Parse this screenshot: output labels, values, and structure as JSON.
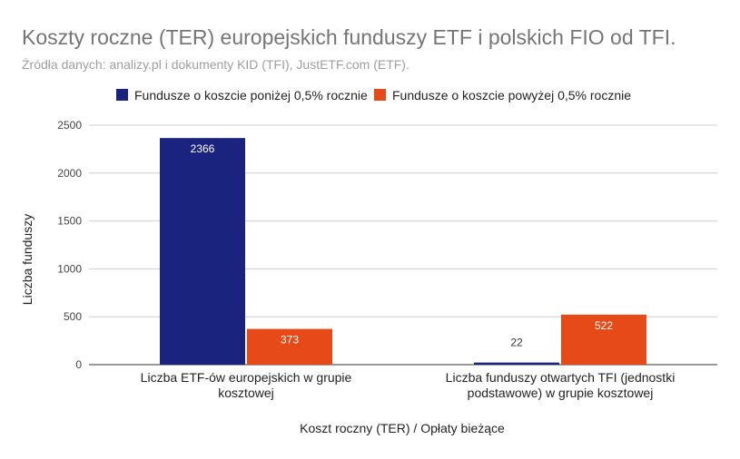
{
  "chart_data": {
    "type": "bar",
    "title": "Koszty roczne (TER) europejskich funduszy ETF i polskich FIO od TFI.",
    "subtitle": "Źródła danych: analizy.pl i dokumenty KID (TFI), JustETF.com (ETF).",
    "xlabel": "Koszt roczny (TER) / Opłaty bieżące",
    "ylabel": "Liczba funduszy",
    "categories": [
      [
        "Liczba ETF-ów europejskich w grupie",
        "kosztowej"
      ],
      [
        "Liczba funduszy otwartych TFI (jednostki",
        "podstawowe) w grupie kosztowej"
      ]
    ],
    "series": [
      {
        "name": "Fundusze o koszcie poniżej 0,5% rocznie",
        "color": "#1a237e",
        "values": [
          2366,
          22
        ]
      },
      {
        "name": "Fundusze o koszcie powyżej 0,5% rocznie",
        "color": "#e64a19",
        "values": [
          373,
          522
        ]
      }
    ],
    "ylim": [
      0,
      2500
    ],
    "yticks": [
      0,
      500,
      1000,
      1500,
      2000,
      2500
    ],
    "grid": true,
    "legend": "top-center"
  }
}
